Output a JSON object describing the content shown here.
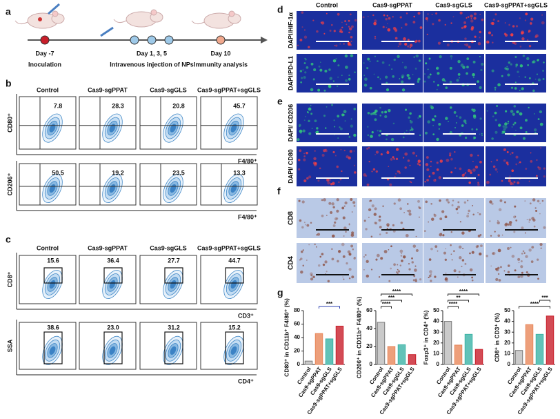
{
  "panels": {
    "a": {
      "label": "a",
      "timepoints": [
        {
          "day": "Day -7",
          "event": "Inoculation"
        },
        {
          "day": "Day 1, 3, 5",
          "event": "Intravenous injection of NPs"
        },
        {
          "day": "Day 10",
          "event": "Immunity analysis"
        }
      ]
    },
    "b": {
      "label": "b",
      "columns": [
        "Control",
        "Cas9-sgPPAT",
        "Cas9-sgGLS",
        "Cas9-sgPPAT+sgGLS"
      ],
      "rows": [
        {
          "y_label": "CD80⁺",
          "x_label": "F4/80⁺",
          "values": [
            "7.8",
            "28.3",
            "20.8",
            "45.7"
          ]
        },
        {
          "y_label": "CD206⁺",
          "x_label": "F4/80⁺",
          "values": [
            "50.5",
            "19.2",
            "23.5",
            "13.3"
          ]
        }
      ]
    },
    "c": {
      "label": "c",
      "columns": [
        "Control",
        "Cas9-sgPPAT",
        "Cas9-sgGLS",
        "Cas9-sgPPAT+sgGLS"
      ],
      "rows": [
        {
          "y_label": "CD8⁺",
          "x_label": "CD3⁺",
          "values": [
            "15.6",
            "36.4",
            "27.7",
            "44.7"
          ]
        },
        {
          "y_label": "SSA",
          "x_label": "CD4⁺",
          "values": [
            "38.6",
            "23.0",
            "31.2",
            "15.2"
          ]
        }
      ]
    },
    "d": {
      "label": "d",
      "columns": [
        "Control",
        "Cas9-sgPPAT",
        "Cas9-sgGLS",
        "Cas9-sgPPAT+sgGLS"
      ],
      "rows": [
        "DAPI/HIF-1α",
        "DAPI/PD-L1"
      ]
    },
    "e": {
      "label": "e",
      "rows": [
        "DAPI/ CD206",
        "DAPI/ CD80"
      ]
    },
    "f": {
      "label": "f",
      "rows": [
        "CD8",
        "CD4"
      ]
    },
    "g": {
      "label": "g"
    }
  },
  "chart_data": [
    {
      "type": "bar",
      "y_label": "CD80⁺ in CD11b⁺ F4/80⁺ (%)",
      "categories": [
        "Control",
        "Cas9-sgPPAT",
        "Cas9-sgGLS",
        "Cas9-sgPPAT+sgGLS"
      ],
      "values": [
        5,
        46,
        38,
        57
      ],
      "colors": [
        "#bdbdbd",
        "#e8875a",
        "#3bb3a6",
        "#c81e2a"
      ],
      "ylim": [
        0,
        80
      ],
      "yticks": [
        0,
        20,
        40,
        60,
        80
      ],
      "significance": [
        "***"
      ]
    },
    {
      "type": "bar",
      "y_label": "CD206⁺ in CD11b⁺ F4/80⁺ (%)",
      "categories": [
        "Control",
        "Cas9-sgPPAT",
        "Cas9-sgGLS",
        "Cas9-sgPPAT+sgGLS"
      ],
      "values": [
        47,
        20,
        22,
        11
      ],
      "colors": [
        "#bdbdbd",
        "#e8875a",
        "#3bb3a6",
        "#c81e2a"
      ],
      "ylim": [
        0,
        60
      ],
      "yticks": [
        0,
        20,
        40,
        60
      ],
      "significance": [
        "****",
        "***",
        "****"
      ]
    },
    {
      "type": "bar",
      "y_label": "Foxp3⁺ in CD4⁺ (%)",
      "categories": [
        "Control",
        "Cas9-sgPPAT",
        "Cas9-sgGLS",
        "Cas9-sgPPAT+sgGLS"
      ],
      "values": [
        40,
        18,
        28,
        14
      ],
      "colors": [
        "#bdbdbd",
        "#e8875a",
        "#3bb3a6",
        "#c81e2a"
      ],
      "ylim": [
        0,
        50
      ],
      "yticks": [
        0,
        10,
        20,
        30,
        40,
        50
      ],
      "significance": [
        "****",
        "**",
        "****"
      ]
    },
    {
      "type": "bar",
      "y_label": "CD8⁺ in CD3⁺ (%)",
      "categories": [
        "Control",
        "Cas9-sgPPAT",
        "Cas9-sgGLS",
        "Cas9-sgPPAT+sgGLS"
      ],
      "values": [
        13,
        37,
        28,
        45
      ],
      "colors": [
        "#bdbdbd",
        "#e8875a",
        "#3bb3a6",
        "#c81e2a"
      ],
      "ylim": [
        0,
        50
      ],
      "yticks": [
        0,
        10,
        20,
        30,
        40,
        50
      ],
      "significance": [
        "****",
        "***"
      ]
    }
  ]
}
